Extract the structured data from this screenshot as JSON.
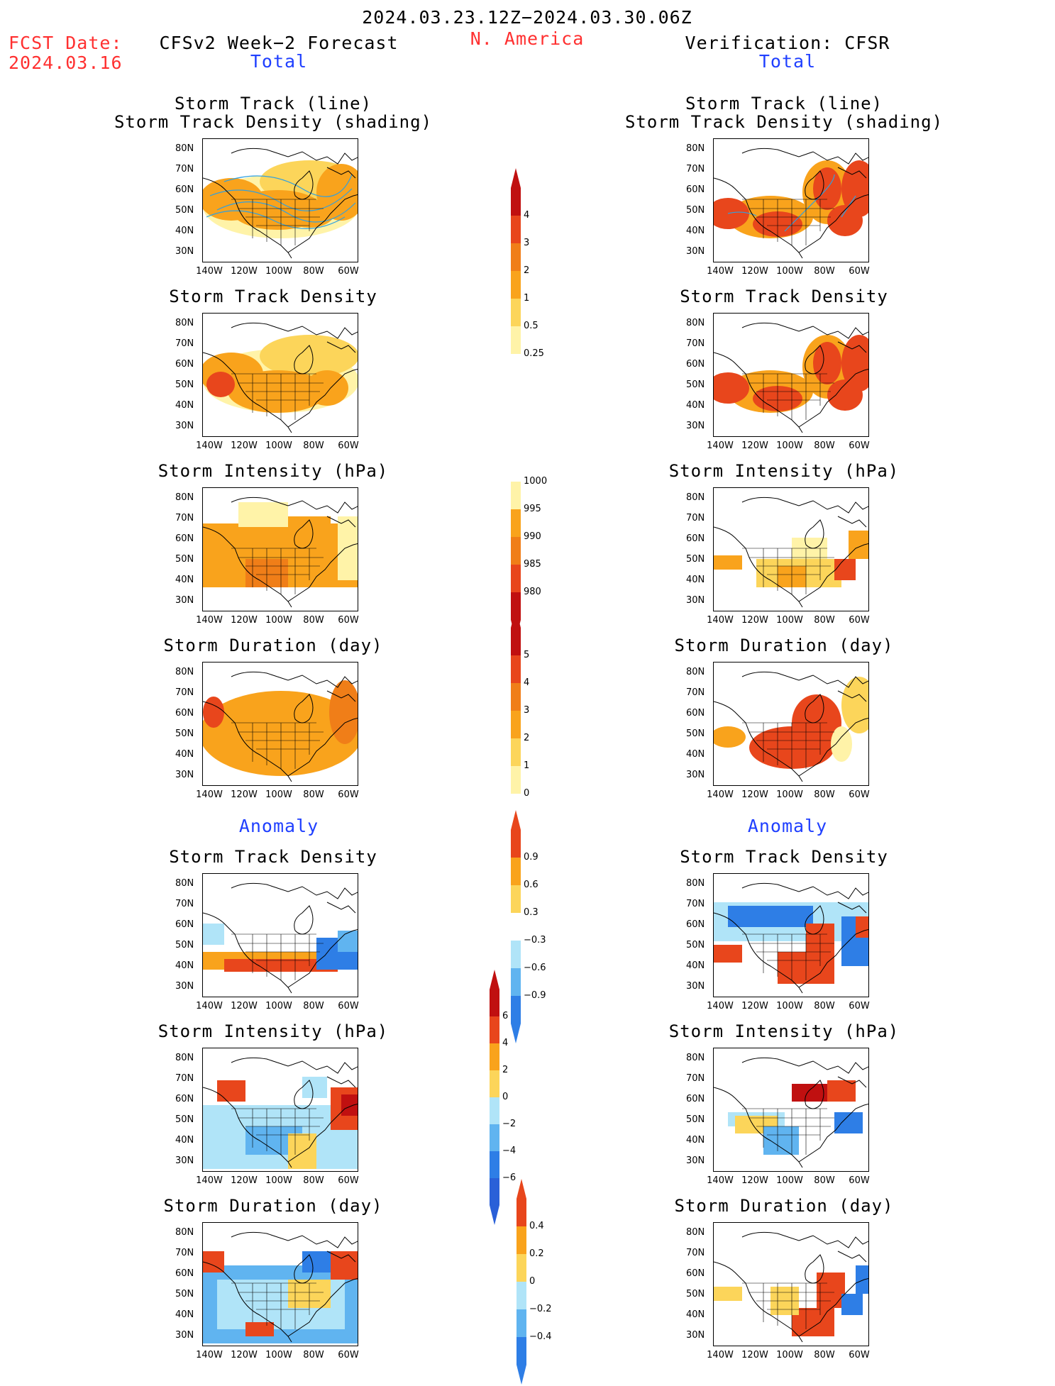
{
  "header": {
    "date_range": "2024.03.23.12Z−2024.03.30.06Z",
    "region": "N. America",
    "fcst_label": "FCST Date:",
    "fcst_date": "2024.03.16",
    "left_title": "CFSv2 Week−2 Forecast",
    "right_title": "Verification: CFSR",
    "total_left": "Total",
    "total_right": "Total",
    "anomaly_left": "Anomaly",
    "anomaly_right": "Anomaly"
  },
  "panel_titles": {
    "track_line": "Storm Track (line)",
    "track_shading": "Storm Track Density (shading)",
    "density": "Storm Track Density",
    "intensity": "Storm Intensity (hPa)",
    "duration": "Storm Duration (day)"
  },
  "lat_labels": [
    "80N",
    "70N",
    "60N",
    "50N",
    "40N",
    "30N"
  ],
  "lon_labels": [
    "140W",
    "120W",
    "100W",
    "80W",
    "60W"
  ],
  "colorbars": {
    "density_total": [
      "4",
      "3",
      "2",
      "1",
      "0.5",
      "0.25"
    ],
    "intensity_total": [
      "1000",
      "995",
      "990",
      "985",
      "980"
    ],
    "duration_total": [
      "5",
      "4",
      "3",
      "2",
      "1",
      "0"
    ],
    "density_anom": [
      "0.9",
      "0.6",
      "0.3",
      "−0.3",
      "−0.6",
      "−0.9"
    ],
    "intensity_anom": [
      "6",
      "4",
      "2",
      "0",
      "−2",
      "−4",
      "−6"
    ],
    "duration_anom": [
      "0.4",
      "0.2",
      "0",
      "−0.2",
      "−0.4"
    ]
  },
  "colors": {
    "lightyellow": "#fff3a8",
    "yellow": "#fcd55a",
    "orange": "#f9a31c",
    "darkorange": "#f07e18",
    "red": "#e8461c",
    "darkred": "#c01010",
    "lightblue": "#b0e4f8",
    "midblue": "#60b4f0",
    "blue": "#2e7ee6",
    "track_line": "#30a0e0"
  }
}
